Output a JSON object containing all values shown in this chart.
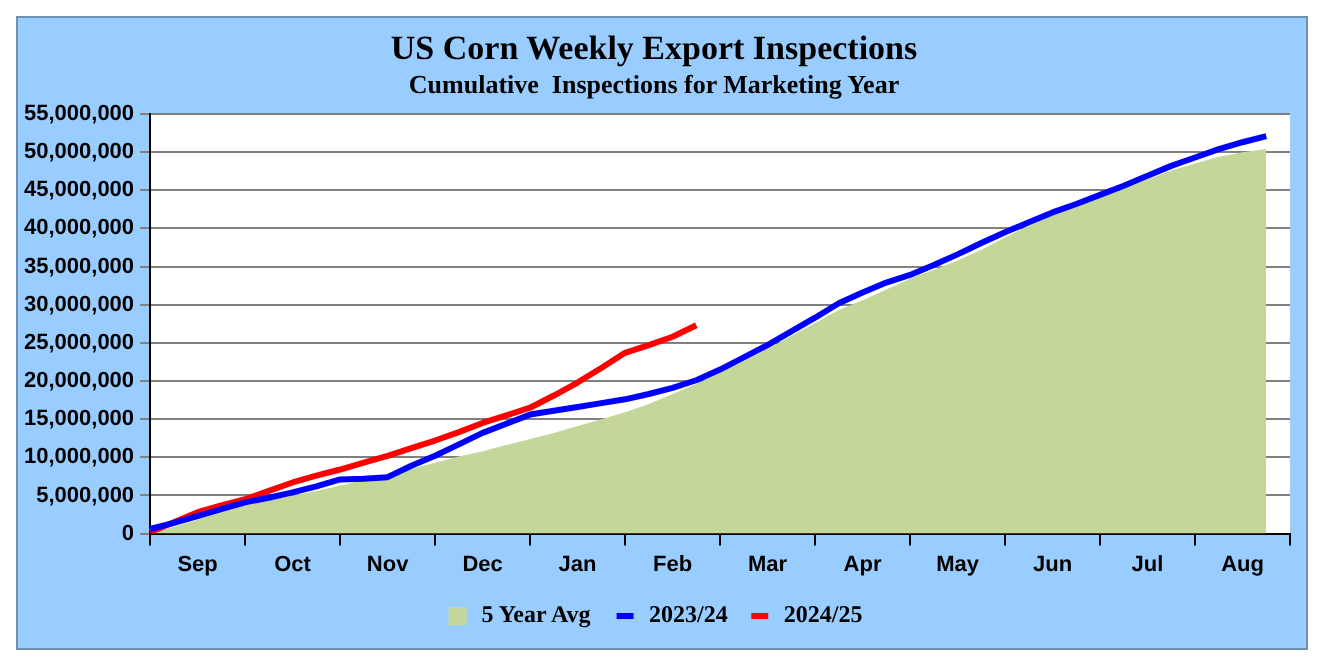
{
  "chart_data": {
    "type": "line",
    "title": "US Corn Weekly Export Inspections",
    "subtitle": "Cumulative  Inspections for Marketing Year",
    "categories": [
      null,
      null,
      "Sep",
      null,
      null,
      null,
      "Oct",
      null,
      null,
      null,
      "Nov",
      null,
      null,
      null,
      "Dec",
      null,
      null,
      null,
      "Jan",
      null,
      null,
      null,
      "Feb",
      null,
      null,
      null,
      "Mar",
      null,
      null,
      null,
      "Apr",
      null,
      null,
      null,
      "May",
      null,
      null,
      null,
      "Jun",
      null,
      null,
      null,
      "Jul",
      null,
      null,
      null,
      "Aug",
      null,
      null
    ],
    "ylim": [
      0,
      55000000
    ],
    "yticks": [
      {
        "value": 0,
        "label": "0"
      },
      {
        "value": 5000000,
        "label": "5,000,000"
      },
      {
        "value": 10000000,
        "label": "10,000,000"
      },
      {
        "value": 15000000,
        "label": "15,000,000"
      },
      {
        "value": 20000000,
        "label": "20,000,000"
      },
      {
        "value": 25000000,
        "label": "25,000,000"
      },
      {
        "value": 30000000,
        "label": "30,000,000"
      },
      {
        "value": 35000000,
        "label": "35,000,000"
      },
      {
        "value": 40000000,
        "label": "40,000,000"
      },
      {
        "value": 45000000,
        "label": "45,000,000"
      },
      {
        "value": 50000000,
        "label": "50,000,000"
      },
      {
        "value": 55000000,
        "label": "55,000,000"
      }
    ],
    "grid": "y",
    "legend": "bottom",
    "marker": "none",
    "line_style": "solid",
    "series": [
      {
        "name": "5 Year Avg",
        "type": "area",
        "color": "#c4d79b",
        "values": [
          0,
          900000,
          1800000,
          2800000,
          3700000,
          4300000,
          5000000,
          5600000,
          6300000,
          7000000,
          7800000,
          8500000,
          9300000,
          10100000,
          10800000,
          11600000,
          12400000,
          13200000,
          14100000,
          15000000,
          15900000,
          17000000,
          18300000,
          19600000,
          21100000,
          22600000,
          24200000,
          25900000,
          27600000,
          29300000,
          30600000,
          32000000,
          33400000,
          34600000,
          35800000,
          37200000,
          38800000,
          40400000,
          41700000,
          42900000,
          44000000,
          45200000,
          46400000,
          47600000,
          48500000,
          49400000,
          50000000,
          50400000,
          null
        ]
      },
      {
        "name": "2023/24",
        "type": "line",
        "color": "#0000ff",
        "values": [
          600000,
          1400000,
          2300000,
          3200000,
          4100000,
          4700000,
          5400000,
          6200000,
          7100000,
          7200000,
          7400000,
          8900000,
          10200000,
          11700000,
          13200000,
          14400000,
          15600000,
          16100000,
          16600000,
          17100000,
          17600000,
          18300000,
          19100000,
          20100000,
          21500000,
          23100000,
          24700000,
          26500000,
          28300000,
          30200000,
          31600000,
          32900000,
          33900000,
          35200000,
          36600000,
          38100000,
          39500000,
          40800000,
          42100000,
          43200000,
          44400000,
          45600000,
          46900000,
          48200000,
          49300000,
          50400000,
          51300000,
          52100000,
          null
        ]
      },
      {
        "name": "2024/25",
        "type": "line",
        "color": "#ff0000",
        "values": [
          200000,
          1500000,
          2800000,
          3700000,
          4500000,
          5600000,
          6700000,
          7600000,
          8400000,
          9300000,
          10200000,
          11200000,
          12200000,
          13300000,
          14500000,
          15500000,
          16500000,
          18100000,
          19800000,
          21700000,
          23700000,
          24700000,
          25800000,
          27300000,
          null,
          null,
          null,
          null,
          null,
          null,
          null,
          null,
          null,
          null,
          null,
          null,
          null,
          null,
          null,
          null,
          null,
          null,
          null,
          null,
          null,
          null,
          null,
          null,
          null
        ]
      }
    ]
  }
}
